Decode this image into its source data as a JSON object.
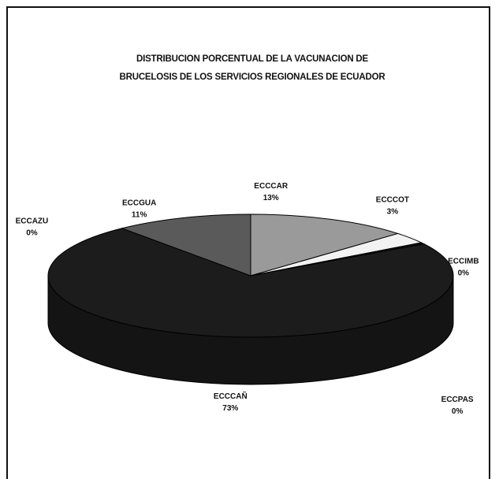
{
  "chart_data": {
    "type": "pie",
    "title_lines": [
      "DISTRIBUCION PORCENTUAL DE LA VACUNACION DE",
      "BRUCELOSIS DE LOS SERVICIOS REGIONALES DE ECUADOR"
    ],
    "slices": [
      {
        "label": "ECCCAR",
        "pct_label": "13%",
        "value": 13,
        "color": "#9a9a9a"
      },
      {
        "label": "ECCCOT",
        "pct_label": "3%",
        "value": 3,
        "color": "#f2f2f2"
      },
      {
        "label": "ECCIMB",
        "pct_label": "0%",
        "value": 0.4,
        "color": "#111111"
      },
      {
        "label": "ECCPAS",
        "pct_label": "0%",
        "value": 0,
        "color": "#1a1a1a"
      },
      {
        "label": "ECCCAÑ",
        "pct_label": "73%",
        "value": 73,
        "color": "#1c1c1c"
      },
      {
        "label": "ECCAZU",
        "pct_label": "0%",
        "value": 0,
        "color": "#2a2a2a"
      },
      {
        "label": "ECCGUA",
        "pct_label": "11%",
        "value": 11,
        "color": "#5a5a5a"
      }
    ],
    "style": "3d-pie"
  }
}
